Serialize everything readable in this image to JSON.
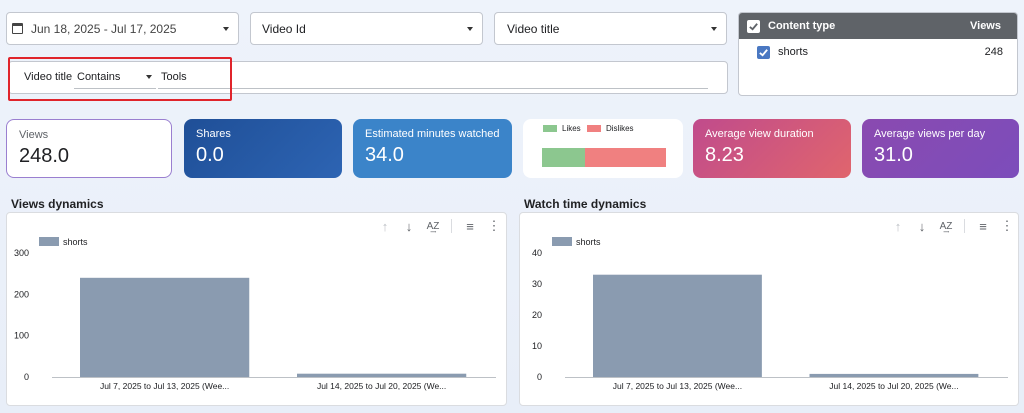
{
  "filters": {
    "date_range": "Jun 18, 2025 - Jul 17, 2025",
    "video_id": "Video Id",
    "video_title": "Video title"
  },
  "advanced_filter": {
    "field": "Video title",
    "operator": "Contains",
    "value": "Tools"
  },
  "content_type_table": {
    "header_label": "Content type",
    "header_views": "Views",
    "rows": [
      {
        "label": "shorts",
        "views": "248",
        "checked": true
      }
    ]
  },
  "scorecards": {
    "views": {
      "label": "Views",
      "value": "248.0"
    },
    "shares": {
      "label": "Shares",
      "value": "0.0"
    },
    "minutes": {
      "label": "Estimated minutes watched",
      "value": "34.0"
    },
    "likes_dislikes": {
      "likes_label": "Likes",
      "dislikes_label": "Dislikes",
      "likes_fraction": 0.35,
      "likes_color": "#8cc78f",
      "dislikes_color": "#f08080"
    },
    "avg_duration": {
      "label": "Average view duration",
      "value": "8.23"
    },
    "avg_per_day": {
      "label": "Average views per day",
      "value": "31.0"
    }
  },
  "chart_data": [
    {
      "type": "bar",
      "title": "Views dynamics",
      "categories": [
        "Jul 7, 2025 to Jul 13, 2025 (Wee...",
        "Jul 14, 2025 to Jul 20, 2025 (We..."
      ],
      "series": [
        {
          "name": "shorts",
          "values": [
            240,
            8
          ]
        }
      ],
      "yticks": [
        "300",
        "200",
        "100",
        "0"
      ],
      "ylim": [
        0,
        300
      ],
      "color": "#8a9bb0"
    },
    {
      "type": "bar",
      "title": "Watch time dynamics",
      "categories": [
        "Jul 7, 2025 to Jul 13, 2025 (Wee...",
        "Jul 14, 2025 to Jul 20, 2025 (We..."
      ],
      "series": [
        {
          "name": "shorts",
          "values": [
            33,
            1
          ]
        }
      ],
      "yticks": [
        "40",
        "30",
        "20",
        "10",
        "0"
      ],
      "ylim": [
        0,
        40
      ],
      "color": "#8a9bb0"
    }
  ],
  "toolbar": {
    "up": "↑",
    "down": "↓",
    "sort": "A͢Z",
    "filter": "≡",
    "more": "⋮"
  }
}
